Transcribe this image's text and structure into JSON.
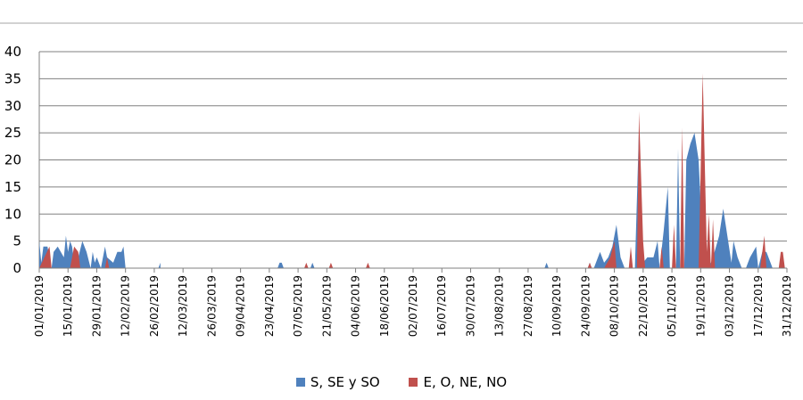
{
  "chart_data": {
    "type": "area",
    "ylim": [
      0,
      40
    ],
    "yticks": [
      "0",
      "5",
      "10",
      "15",
      "20",
      "25",
      "30",
      "35",
      "40"
    ],
    "xlabels": [
      "01/01/2019",
      "15/01/2019",
      "29/01/2019",
      "12/02/2019",
      "26/02/2019",
      "12/03/2019",
      "26/03/2019",
      "09/04/2019",
      "23/04/2019",
      "07/05/2019",
      "21/05/2019",
      "04/06/2019",
      "18/06/2019",
      "02/07/2019",
      "16/07/2019",
      "30/07/2019",
      "13/08/2019",
      "27/08/2019",
      "10/09/2019",
      "24/09/2019",
      "08/10/2019",
      "22/10/2019",
      "05/11/2019",
      "19/11/2019",
      "03/12/2019",
      "17/12/2019",
      "31/12/2019"
    ],
    "grid": true,
    "legend_position": "bottom",
    "series": [
      {
        "name": "S, SE y SO",
        "color": "#4F81BD",
        "points": [
          [
            "01/01/2019",
            5
          ],
          [
            "02/01/2019",
            1
          ],
          [
            "03/01/2019",
            4
          ],
          [
            "05/01/2019",
            4
          ],
          [
            "07/01/2019",
            0
          ],
          [
            "08/01/2019",
            3
          ],
          [
            "10/01/2019",
            4
          ],
          [
            "13/01/2019",
            2
          ],
          [
            "14/01/2019",
            6
          ],
          [
            "15/01/2019",
            3
          ],
          [
            "16/01/2019",
            5
          ],
          [
            "17/01/2019",
            4
          ],
          [
            "18/01/2019",
            1
          ],
          [
            "19/01/2019",
            0
          ],
          [
            "20/01/2019",
            2
          ],
          [
            "22/01/2019",
            5
          ],
          [
            "24/01/2019",
            3
          ],
          [
            "26/01/2019",
            0
          ],
          [
            "27/01/2019",
            3
          ],
          [
            "28/01/2019",
            1
          ],
          [
            "29/01/2019",
            2
          ],
          [
            "31/01/2019",
            0
          ],
          [
            "02/02/2019",
            4
          ],
          [
            "03/02/2019",
            2
          ],
          [
            "06/02/2019",
            1
          ],
          [
            "08/02/2019",
            3
          ],
          [
            "10/02/2019",
            3
          ],
          [
            "11/02/2019",
            4
          ],
          [
            "12/02/2019",
            0
          ],
          [
            "28/02/2019",
            0
          ],
          [
            "29/02/2019",
            1
          ],
          [
            "01/03/2019",
            0
          ],
          [
            "27/04/2019",
            0
          ],
          [
            "28/04/2019",
            1
          ],
          [
            "29/04/2019",
            1
          ],
          [
            "30/04/2019",
            0
          ],
          [
            "13/05/2019",
            0
          ],
          [
            "14/05/2019",
            1
          ],
          [
            "15/05/2019",
            0
          ],
          [
            "04/09/2019",
            0
          ],
          [
            "05/09/2019",
            1
          ],
          [
            "06/09/2019",
            0
          ],
          [
            "25/09/2019",
            0
          ],
          [
            "26/09/2019",
            1
          ],
          [
            "27/09/2019",
            0
          ],
          [
            "28/09/2019",
            0
          ],
          [
            "01/10/2019",
            3
          ],
          [
            "03/10/2019",
            1
          ],
          [
            "05/10/2019",
            2
          ],
          [
            "07/10/2019",
            4
          ],
          [
            "09/10/2019",
            8
          ],
          [
            "11/10/2019",
            2
          ],
          [
            "13/10/2019",
            0
          ],
          [
            "18/10/2019",
            0
          ],
          [
            "20/10/2019",
            26
          ],
          [
            "22/10/2019",
            1
          ],
          [
            "24/10/2019",
            2
          ],
          [
            "27/10/2019",
            2
          ],
          [
            "29/10/2019",
            5
          ],
          [
            "30/10/2019",
            0
          ],
          [
            "01/11/2019",
            7
          ],
          [
            "03/11/2019",
            15
          ],
          [
            "04/11/2019",
            0
          ],
          [
            "07/11/2019",
            0
          ],
          [
            "08/11/2019",
            22
          ],
          [
            "09/11/2019",
            0
          ],
          [
            "11/11/2019",
            0
          ],
          [
            "12/11/2019",
            20
          ],
          [
            "14/11/2019",
            23
          ],
          [
            "16/11/2019",
            25
          ],
          [
            "18/11/2019",
            20
          ],
          [
            "20/11/2019",
            4
          ],
          [
            "22/11/2019",
            2
          ],
          [
            "23/11/2019",
            0
          ],
          [
            "25/11/2019",
            2
          ],
          [
            "28/11/2019",
            6
          ],
          [
            "30/11/2019",
            11
          ],
          [
            "02/12/2019",
            6
          ],
          [
            "04/12/2019",
            1
          ],
          [
            "05/12/2019",
            5
          ],
          [
            "07/12/2019",
            2
          ],
          [
            "09/12/2019",
            0
          ],
          [
            "11/12/2019",
            0
          ],
          [
            "13/12/2019",
            2
          ],
          [
            "16/12/2019",
            4
          ],
          [
            "17/12/2019",
            0
          ],
          [
            "19/12/2019",
            3
          ],
          [
            "21/12/2019",
            3
          ],
          [
            "23/12/2019",
            1
          ],
          [
            "24/12/2019",
            0
          ]
        ]
      },
      {
        "name": "E, O, NE, NO",
        "color": "#C0504D",
        "points": [
          [
            "01/01/2019",
            0
          ],
          [
            "06/01/2019",
            4
          ],
          [
            "07/01/2019",
            0
          ],
          [
            "16/01/2019",
            0
          ],
          [
            "18/01/2019",
            4
          ],
          [
            "20/01/2019",
            3
          ],
          [
            "21/01/2019",
            0
          ],
          [
            "02/02/2019",
            0
          ],
          [
            "03/02/2019",
            2
          ],
          [
            "04/02/2019",
            0
          ],
          [
            "10/05/2019",
            0
          ],
          [
            "11/05/2019",
            1
          ],
          [
            "12/05/2019",
            0
          ],
          [
            "22/05/2019",
            0
          ],
          [
            "23/05/2019",
            1
          ],
          [
            "24/05/2019",
            0
          ],
          [
            "09/06/2019",
            0
          ],
          [
            "10/06/2019",
            1
          ],
          [
            "11/06/2019",
            0
          ],
          [
            "25/09/2019",
            0
          ],
          [
            "26/09/2019",
            1
          ],
          [
            "27/09/2019",
            0
          ],
          [
            "03/10/2019",
            0
          ],
          [
            "06/10/2019",
            2
          ],
          [
            "08/10/2019",
            5
          ],
          [
            "09/10/2019",
            0
          ],
          [
            "15/10/2019",
            0
          ],
          [
            "16/10/2019",
            4
          ],
          [
            "17/10/2019",
            0
          ],
          [
            "19/10/2019",
            0
          ],
          [
            "20/10/2019",
            29
          ],
          [
            "22/10/2019",
            5
          ],
          [
            "23/10/2019",
            0
          ],
          [
            "30/10/2019",
            0
          ],
          [
            "31/10/2019",
            4
          ],
          [
            "01/11/2019",
            0
          ],
          [
            "05/11/2019",
            0
          ],
          [
            "06/11/2019",
            8
          ],
          [
            "07/11/2019",
            0
          ],
          [
            "09/11/2019",
            0
          ],
          [
            "10/11/2019",
            26
          ],
          [
            "11/11/2019",
            0
          ],
          [
            "18/11/2019",
            0
          ],
          [
            "20/11/2019",
            36
          ],
          [
            "22/11/2019",
            3
          ],
          [
            "23/11/2019",
            10
          ],
          [
            "24/11/2019",
            0
          ],
          [
            "25/11/2019",
            9
          ],
          [
            "26/11/2019",
            0
          ],
          [
            "18/12/2019",
            0
          ],
          [
            "19/12/2019",
            3
          ],
          [
            "20/12/2019",
            6
          ],
          [
            "21/12/2019",
            0
          ],
          [
            "27/12/2019",
            0
          ],
          [
            "28/12/2019",
            3
          ],
          [
            "29/12/2019",
            3
          ],
          [
            "30/12/2019",
            0
          ]
        ]
      }
    ]
  }
}
